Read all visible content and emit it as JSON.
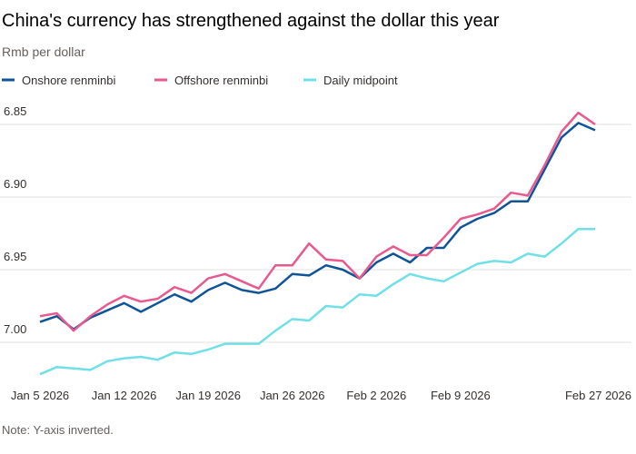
{
  "chart_data": {
    "type": "line",
    "title": "China's currency has strengthened against the dollar this year",
    "subtitle": "Rmb per dollar",
    "note": "Note: Y-axis inverted.",
    "categories": [
      "Jan 5 2026",
      null,
      null,
      null,
      null,
      "Jan 12 2026",
      null,
      null,
      null,
      null,
      "Jan 19 2026",
      null,
      null,
      null,
      null,
      "Jan 26 2026",
      null,
      null,
      null,
      null,
      "Feb 2 2026",
      null,
      null,
      null,
      null,
      "Feb 9 2026",
      null,
      null,
      null,
      null,
      null,
      null,
      null,
      "Feb 27 2026"
    ],
    "series": [
      {
        "name": "Onshore renminbi",
        "color": "#0f5499",
        "values": [
          6.986,
          6.982,
          6.991,
          6.983,
          6.978,
          6.973,
          6.979,
          6.973,
          6.967,
          6.972,
          6.964,
          6.959,
          6.964,
          6.966,
          6.963,
          6.953,
          6.954,
          6.947,
          6.95,
          6.956,
          6.945,
          6.939,
          6.945,
          6.935,
          6.935,
          6.921,
          6.915,
          6.911,
          6.903,
          6.903,
          6.881,
          6.859,
          6.849,
          6.854
        ]
      },
      {
        "name": "Offshore renminbi",
        "color": "#e9598e",
        "values": [
          6.982,
          6.98,
          6.992,
          6.982,
          6.974,
          6.968,
          6.972,
          6.97,
          6.962,
          6.966,
          6.956,
          6.953,
          6.958,
          6.963,
          6.947,
          6.947,
          6.932,
          6.943,
          6.944,
          6.956,
          6.941,
          6.934,
          6.94,
          6.94,
          6.928,
          6.915,
          6.912,
          6.908,
          6.897,
          6.899,
          6.878,
          6.855,
          6.842,
          6.85
        ]
      },
      {
        "name": "Daily midpoint",
        "color": "#6fe0e8",
        "values": [
          7.022,
          7.017,
          7.018,
          7.019,
          7.013,
          7.011,
          7.01,
          7.012,
          7.007,
          7.008,
          7.005,
          7.001,
          7.001,
          7.001,
          6.992,
          6.984,
          6.985,
          6.975,
          6.976,
          6.967,
          6.968,
          6.96,
          6.953,
          6.956,
          6.958,
          6.952,
          6.946,
          6.944,
          6.945,
          6.939,
          6.941,
          6.932,
          6.922,
          6.922
        ]
      }
    ],
    "ylim": [
      7.03,
      6.83
    ],
    "yticks": [
      6.85,
      {
        "value": 6.9,
        "label": "6.90"
      },
      6.95,
      {
        "value": 7,
        "label": "7.00"
      }
    ],
    "grid": true
  }
}
